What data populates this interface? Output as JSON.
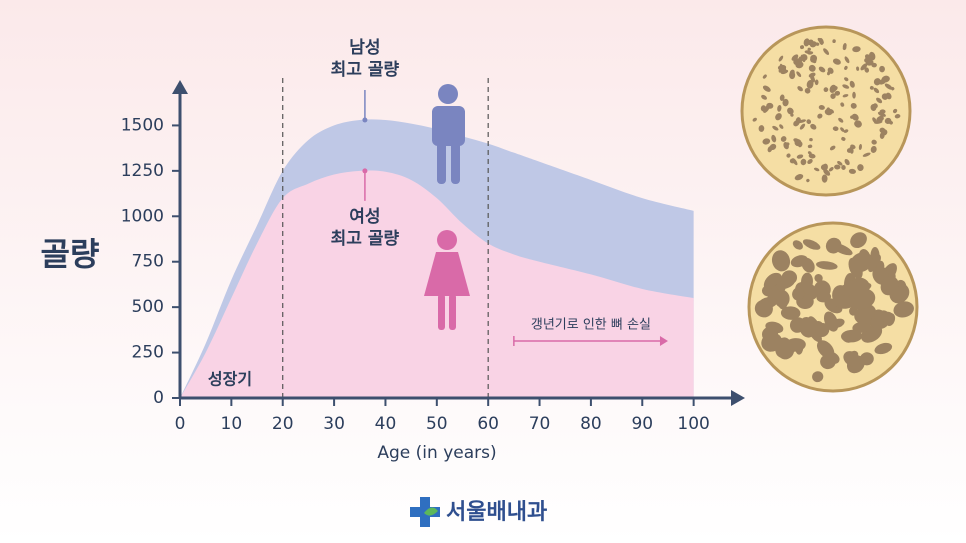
{
  "chart_data": {
    "type": "area",
    "ylabel": "골량",
    "xlabel": "Age (in years)",
    "x": [
      0,
      5,
      10,
      15,
      20,
      25,
      30,
      35,
      40,
      45,
      50,
      55,
      60,
      65,
      70,
      80,
      90,
      100
    ],
    "series": [
      {
        "name": "남성",
        "color": "#bfc8e6",
        "values": [
          0,
          300,
          650,
          950,
          1250,
          1420,
          1500,
          1530,
          1530,
          1510,
          1480,
          1440,
          1400,
          1350,
          1300,
          1200,
          1100,
          1030
        ]
      },
      {
        "name": "여성",
        "color": "#f9d3e5",
        "values": [
          0,
          250,
          550,
          850,
          1100,
          1180,
          1230,
          1250,
          1245,
          1200,
          1100,
          960,
          850,
          790,
          750,
          680,
          600,
          550
        ]
      }
    ],
    "xlim": [
      0,
      110
    ],
    "ylim": [
      0,
      1750
    ],
    "xticks": [
      0,
      10,
      20,
      30,
      40,
      50,
      60,
      70,
      80,
      90,
      100
    ],
    "yticks": [
      0,
      250,
      500,
      750,
      1000,
      1250,
      1500
    ],
    "vlines": [
      20,
      60
    ],
    "annotations": [
      {
        "lines": [
          "남성",
          "최고 골량"
        ],
        "x": 36,
        "y": 1530,
        "color": "#2c3e5c"
      },
      {
        "lines": [
          "여성",
          "최고 골량"
        ],
        "x": 36,
        "y": 1250,
        "color": "#2c3e5c"
      }
    ],
    "phase_label": "성장기",
    "loss_label": "갱년기로 인한 뼈 손실",
    "loss_arrow": [
      65,
      95
    ],
    "logo": "서울배내과"
  }
}
